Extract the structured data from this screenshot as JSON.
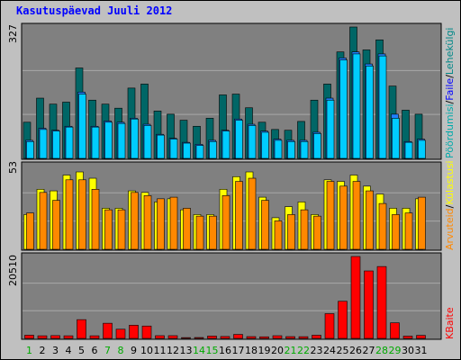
{
  "title": "Kasutuspäevad Juuli 2012",
  "colors": {
    "background": "#c0c0c0",
    "panel": "#808080",
    "grid": "#a0a0a0",
    "title": "#0000ff",
    "pages_dark": "#006666",
    "hits": "#2080ff",
    "files": "#00ccff",
    "visits_orange": "#ff8800",
    "sites_yellow": "#ffff00",
    "kbytes_red": "#ff0000",
    "weekend_label": "#00aa00",
    "weekday_label": "#008800"
  },
  "chart_data": {
    "type": "bar",
    "days": [
      "1",
      "2",
      "3",
      "4",
      "5",
      "6",
      "7",
      "8",
      "9",
      "10",
      "11",
      "12",
      "13",
      "14",
      "15",
      "16",
      "17",
      "18",
      "19",
      "20",
      "21",
      "22",
      "23",
      "24",
      "25",
      "26",
      "27",
      "28",
      "29",
      "30",
      "31"
    ],
    "weekend_days": [
      "1",
      "7",
      "8",
      "14",
      "15",
      "21",
      "22",
      "28",
      "29"
    ],
    "panels": [
      {
        "id": "top",
        "ymax_label": "327",
        "ymax": 327,
        "series": [
          {
            "name": "Lehekülgi",
            "color": "#006666",
            "values": [
              90,
              150,
              135,
              140,
              225,
              145,
              135,
              125,
              175,
              185,
              118,
              110,
              95,
              80,
              100,
              158,
              160,
              126,
              90,
              72,
              70,
              92,
              145,
              185,
              265,
              327,
              270,
              295,
              180,
              120,
              110
            ]
          },
          {
            "name": "Faile",
            "color": "#2080ff",
            "values": [
              45,
              75,
              70,
              80,
              165,
              80,
              93,
              90,
              100,
              85,
              60,
              50,
              40,
              35,
              45,
              70,
              98,
              85,
              68,
              48,
              45,
              45,
              65,
              150,
              250,
              265,
              235,
              260,
              110,
              42,
              48
            ]
          },
          {
            "name": "Pöördumisi",
            "color": "#00ccff",
            "values": [
              42,
              72,
              68,
              78,
              160,
              78,
              90,
              87,
              98,
              82,
              58,
              48,
              38,
              32,
              42,
              68,
              95,
              82,
              65,
              45,
              42,
              42,
              62,
              145,
              245,
              260,
              230,
              255,
              100,
              40,
              45
            ]
          }
        ]
      },
      {
        "id": "middle",
        "ymax_label": "53",
        "ymax": 53,
        "series": [
          {
            "name": "Külastusi",
            "color": "#ffff00",
            "values": [
              22,
              38,
              37,
              47,
              49,
              45,
              26,
              26,
              37,
              36,
              30,
              32,
              25,
              22,
              22,
              38,
              46,
              49,
              33,
              20,
              27,
              30,
              22,
              44,
              43,
              47,
              40,
              35,
              26,
              26,
              32
            ]
          },
          {
            "name": "Arvuteid",
            "color": "#ff8800",
            "values": [
              23,
              36,
              31,
              44,
              44,
              38,
              25,
              25,
              36,
              34,
              32,
              33,
              26,
              21,
              21,
              34,
              43,
              45,
              31,
              18,
              22,
              25,
              21,
              43,
              40,
              43,
              37,
              29,
              22,
              23,
              33
            ]
          }
        ]
      },
      {
        "id": "bottom",
        "ymax_label": "20510",
        "ymax": 20510,
        "series": [
          {
            "name": "KBaite",
            "color": "#ff0000",
            "values": [
              800,
              650,
              700,
              650,
              4700,
              650,
              3800,
              2300,
              3300,
              3100,
              680,
              680,
              200,
              220,
              580,
              480,
              1000,
              450,
              400,
              670,
              450,
              430,
              800,
              6200,
              9300,
              20510,
              16900,
              18000,
              3900,
              570,
              750
            ]
          }
        ]
      }
    ],
    "legend": [
      "Pöördumisi",
      "/",
      "Faile",
      "/",
      "Lehekülgi",
      "/",
      "Külastusi",
      "/",
      "Arvuteid",
      "KBaite"
    ]
  }
}
